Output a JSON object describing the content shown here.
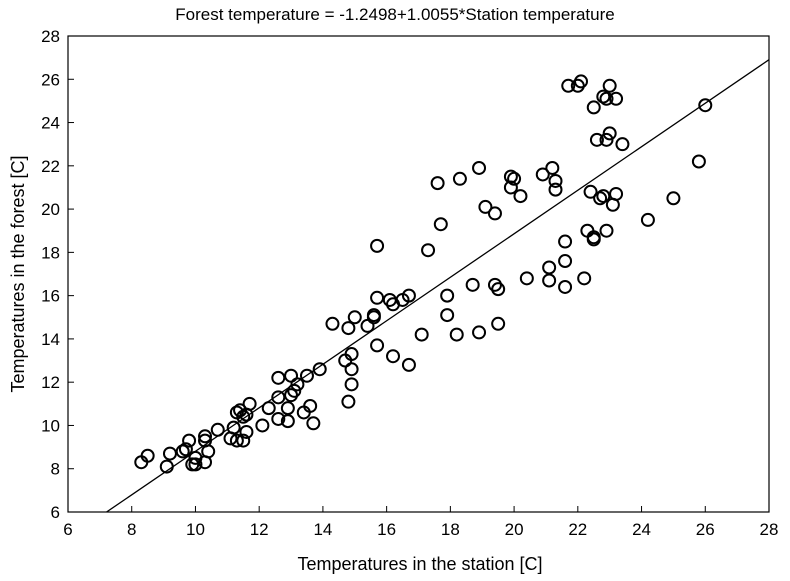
{
  "chart_data": {
    "type": "scatter",
    "title": "Forest temperature = -1.2498+1.0055*Station temperature",
    "xlabel": "Temperatures in the station [C]",
    "ylabel": "Temperatures in the forest [C]",
    "xlim": [
      6,
      28
    ],
    "ylim": [
      6,
      28
    ],
    "xticks": [
      6,
      8,
      10,
      12,
      14,
      16,
      18,
      20,
      22,
      24,
      26,
      28
    ],
    "yticks": [
      6,
      8,
      10,
      12,
      14,
      16,
      18,
      20,
      22,
      24,
      26,
      28
    ],
    "grid": false,
    "legend": "none",
    "regression": {
      "intercept": -1.2498,
      "slope": 1.0055
    },
    "points": [
      [
        8.3,
        8.3
      ],
      [
        8.5,
        8.6
      ],
      [
        9.1,
        8.1
      ],
      [
        9.2,
        8.7
      ],
      [
        9.6,
        8.8
      ],
      [
        9.7,
        8.9
      ],
      [
        9.8,
        9.3
      ],
      [
        9.9,
        8.2
      ],
      [
        10.0,
        8.2
      ],
      [
        10.0,
        8.5
      ],
      [
        10.3,
        8.3
      ],
      [
        10.4,
        8.8
      ],
      [
        10.3,
        9.3
      ],
      [
        10.3,
        9.5
      ],
      [
        10.7,
        9.8
      ],
      [
        11.1,
        9.4
      ],
      [
        11.2,
        9.9
      ],
      [
        11.3,
        9.3
      ],
      [
        11.5,
        9.3
      ],
      [
        11.6,
        9.7
      ],
      [
        11.5,
        10.4
      ],
      [
        11.3,
        10.6
      ],
      [
        11.4,
        10.7
      ],
      [
        11.6,
        10.5
      ],
      [
        11.7,
        11.0
      ],
      [
        12.1,
        10.0
      ],
      [
        12.3,
        10.8
      ],
      [
        12.6,
        10.3
      ],
      [
        12.6,
        11.3
      ],
      [
        12.6,
        12.2
      ],
      [
        12.9,
        10.2
      ],
      [
        12.9,
        10.8
      ],
      [
        13.0,
        11.4
      ],
      [
        13.0,
        12.3
      ],
      [
        13.1,
        11.6
      ],
      [
        13.2,
        11.9
      ],
      [
        13.4,
        10.6
      ],
      [
        13.6,
        10.9
      ],
      [
        13.5,
        12.3
      ],
      [
        13.7,
        10.1
      ],
      [
        13.9,
        12.6
      ],
      [
        14.3,
        14.7
      ],
      [
        14.7,
        13.0
      ],
      [
        14.8,
        11.1
      ],
      [
        14.9,
        11.9
      ],
      [
        14.9,
        12.6
      ],
      [
        14.9,
        13.3
      ],
      [
        14.8,
        14.5
      ],
      [
        15.0,
        15.0
      ],
      [
        15.4,
        14.6
      ],
      [
        15.6,
        15.0
      ],
      [
        15.6,
        15.1
      ],
      [
        15.7,
        13.7
      ],
      [
        15.7,
        15.9
      ],
      [
        15.7,
        18.3
      ],
      [
        16.1,
        15.8
      ],
      [
        16.2,
        15.6
      ],
      [
        16.2,
        13.2
      ],
      [
        16.5,
        15.8
      ],
      [
        16.7,
        16.0
      ],
      [
        16.7,
        12.8
      ],
      [
        17.1,
        14.2
      ],
      [
        17.3,
        18.1
      ],
      [
        17.6,
        21.2
      ],
      [
        17.7,
        19.3
      ],
      [
        17.9,
        15.1
      ],
      [
        17.9,
        16.0
      ],
      [
        18.2,
        14.2
      ],
      [
        18.3,
        21.4
      ],
      [
        18.7,
        16.5
      ],
      [
        18.9,
        14.3
      ],
      [
        18.9,
        21.9
      ],
      [
        19.1,
        20.1
      ],
      [
        19.4,
        19.8
      ],
      [
        19.4,
        16.5
      ],
      [
        19.5,
        16.3
      ],
      [
        19.5,
        14.7
      ],
      [
        19.9,
        21.5
      ],
      [
        19.9,
        21.0
      ],
      [
        20.0,
        21.4
      ],
      [
        20.2,
        20.6
      ],
      [
        20.4,
        16.8
      ],
      [
        20.9,
        21.6
      ],
      [
        21.1,
        16.7
      ],
      [
        21.1,
        17.3
      ],
      [
        21.2,
        21.9
      ],
      [
        21.3,
        20.9
      ],
      [
        21.3,
        21.3
      ],
      [
        21.6,
        16.4
      ],
      [
        21.6,
        17.6
      ],
      [
        21.6,
        18.5
      ],
      [
        21.7,
        25.7
      ],
      [
        22.0,
        25.7
      ],
      [
        22.1,
        25.9
      ],
      [
        22.2,
        16.8
      ],
      [
        22.3,
        19.0
      ],
      [
        22.4,
        20.8
      ],
      [
        22.5,
        18.6
      ],
      [
        22.5,
        18.7
      ],
      [
        22.5,
        24.7
      ],
      [
        22.6,
        23.2
      ],
      [
        22.7,
        20.5
      ],
      [
        22.8,
        20.6
      ],
      [
        22.8,
        25.2
      ],
      [
        22.9,
        19.0
      ],
      [
        22.9,
        23.2
      ],
      [
        22.9,
        25.1
      ],
      [
        23.0,
        23.5
      ],
      [
        23.0,
        25.7
      ],
      [
        23.1,
        20.2
      ],
      [
        23.2,
        20.7
      ],
      [
        23.2,
        25.1
      ],
      [
        23.4,
        23.0
      ],
      [
        24.2,
        19.5
      ],
      [
        25.0,
        20.5
      ],
      [
        25.8,
        22.2
      ],
      [
        26.0,
        24.8
      ]
    ]
  }
}
